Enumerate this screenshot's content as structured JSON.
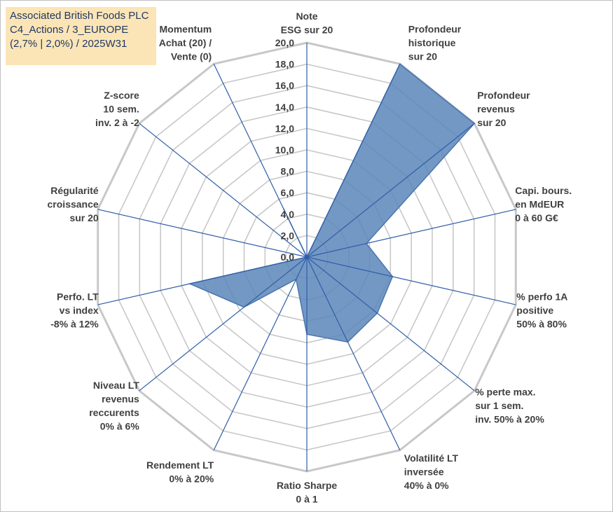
{
  "title": {
    "lines": [
      "Associated British Foods PLC",
      "C4_Actions / 3_EUROPE",
      "(2,7% | 2,0%) / 2025W31"
    ]
  },
  "chart_data": {
    "type": "radar",
    "rlim": [
      0,
      20
    ],
    "rticks": [
      "0,0",
      "2,0",
      "4,0",
      "6,0",
      "8,0",
      "10,0",
      "12,0",
      "14,0",
      "16,0",
      "18,0",
      "20,0"
    ],
    "grid": true,
    "colors": {
      "fill": "#5b86ba",
      "stroke": "#4a76ae",
      "grid": "#c8c8c8",
      "spoke": "#2e5ea6"
    },
    "axes": [
      {
        "lines": [
          "Note",
          "ESG sur 20"
        ]
      },
      {
        "lines": [
          "Profondeur",
          "historique",
          "sur 20"
        ]
      },
      {
        "lines": [
          "Profondeur",
          "revenus",
          "sur 20"
        ]
      },
      {
        "lines": [
          "Capi. bours.",
          "en MdEUR",
          "0 à 60 G€"
        ]
      },
      {
        "lines": [
          "% perfo 1A",
          "positive",
          "50% à 80%"
        ]
      },
      {
        "lines": [
          "% perte max.",
          "sur 1 sem.",
          "inv. 50% à 20%"
        ]
      },
      {
        "lines": [
          "Volatilité LT",
          "inversée",
          "40% à 0%"
        ]
      },
      {
        "lines": [
          "Ratio Sharpe",
          "0 à 1"
        ]
      },
      {
        "lines": [
          "Rendement LT",
          "0% à 20%"
        ]
      },
      {
        "lines": [
          "Niveau LT",
          "revenus",
          "reccurents",
          "0% à 6%"
        ]
      },
      {
        "lines": [
          "Perfo. LT",
          "vs index",
          "-8% à 12%"
        ]
      },
      {
        "lines": [
          "Régularité",
          "croissance",
          "sur 20"
        ]
      },
      {
        "lines": [
          "Z-score",
          "10 sem.",
          "inv. 2 à -2"
        ]
      },
      {
        "lines": [
          "Momentum",
          "Achat (20) /",
          "Vente (0)"
        ]
      }
    ],
    "series": [
      {
        "values": [
          0.0,
          20.0,
          20.0,
          5.7,
          8.2,
          8.4,
          8.8,
          7.2,
          2.3,
          7.5,
          11.2,
          0.0,
          0.0,
          5.0
        ]
      }
    ]
  }
}
